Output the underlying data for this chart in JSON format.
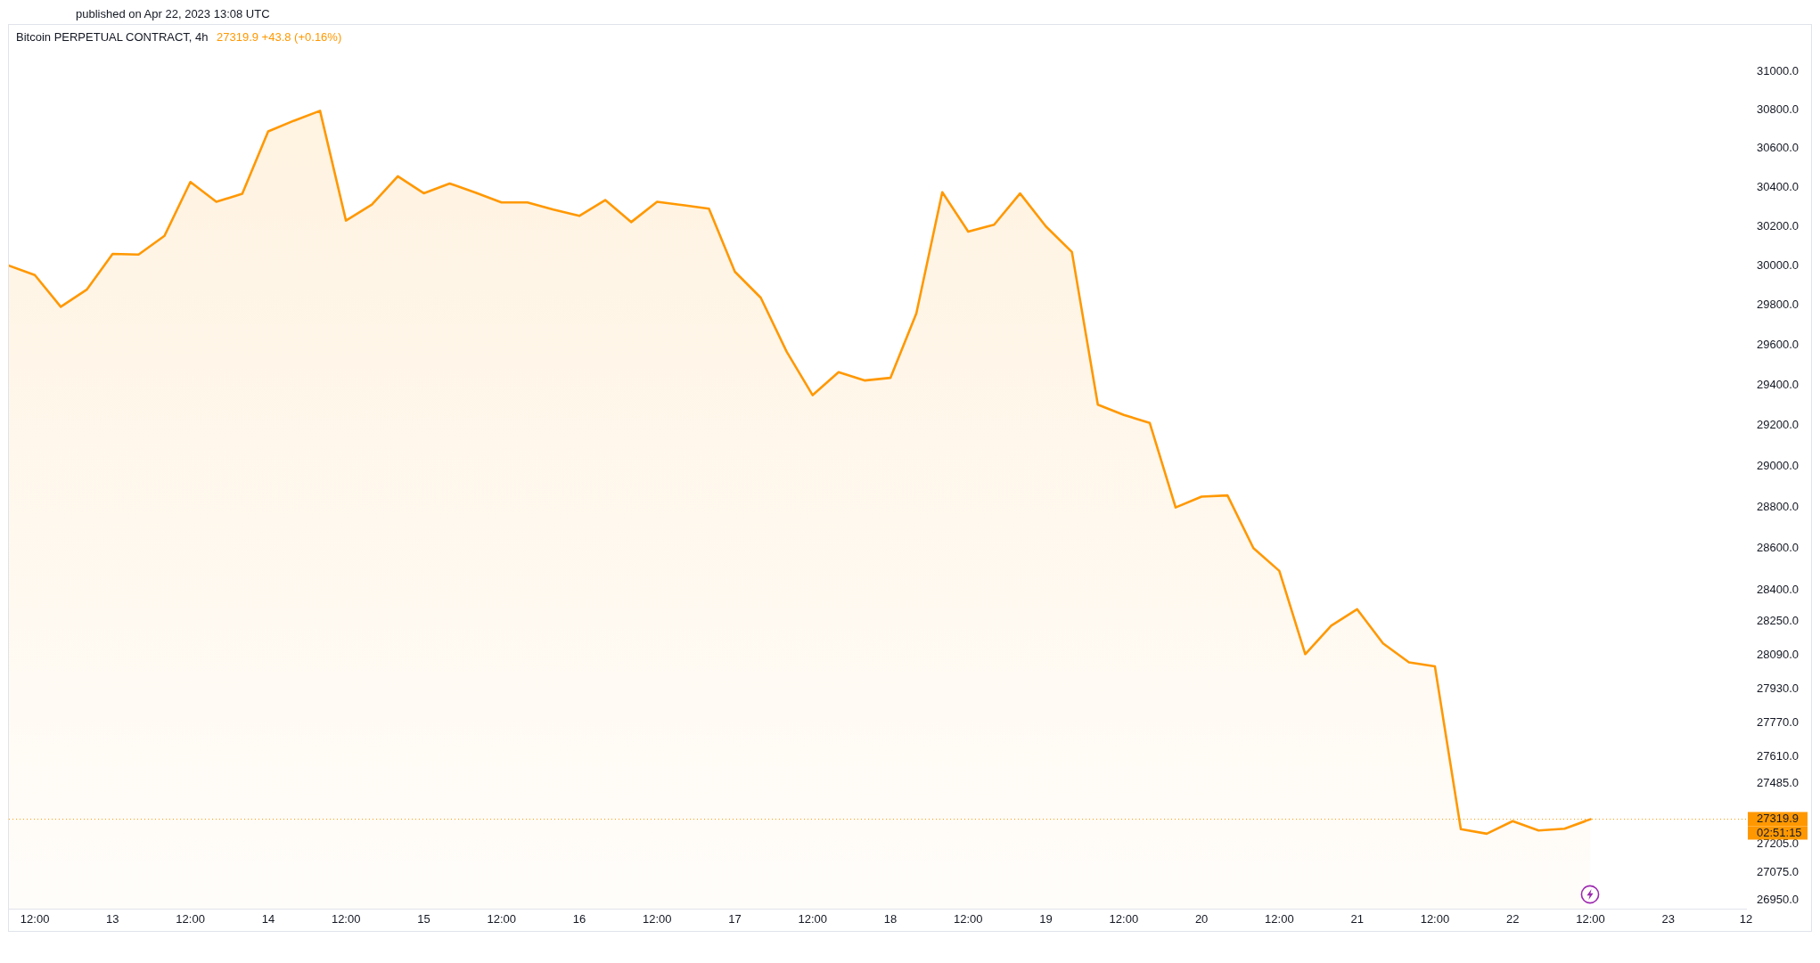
{
  "chart_data": {
    "type": "area",
    "title": "Bitcoin PERPETUAL CONTRACT, 4h",
    "subtitle": "27319.9 +43.8 (+0.16%)",
    "annotations": [
      "published on Apr 22, 2023 13:08 UTC",
      "02:51:15"
    ],
    "x": [
      "2023-04-12T08:00",
      "2023-04-12T12:00",
      "2023-04-12T16:00",
      "2023-04-12T20:00",
      "2023-04-13T00:00",
      "2023-04-13T04:00",
      "2023-04-13T08:00",
      "2023-04-13T12:00",
      "2023-04-13T16:00",
      "2023-04-13T20:00",
      "2023-04-14T00:00",
      "2023-04-14T04:00",
      "2023-04-14T08:00",
      "2023-04-14T12:00",
      "2023-04-14T16:00",
      "2023-04-14T20:00",
      "2023-04-15T00:00",
      "2023-04-15T04:00",
      "2023-04-15T08:00",
      "2023-04-15T12:00",
      "2023-04-15T16:00",
      "2023-04-15T20:00",
      "2023-04-16T00:00",
      "2023-04-16T04:00",
      "2023-04-16T08:00",
      "2023-04-16T12:00",
      "2023-04-16T16:00",
      "2023-04-16T20:00",
      "2023-04-17T00:00",
      "2023-04-17T04:00",
      "2023-04-17T08:00",
      "2023-04-17T12:00",
      "2023-04-17T16:00",
      "2023-04-17T20:00",
      "2023-04-18T00:00",
      "2023-04-18T04:00",
      "2023-04-18T08:00",
      "2023-04-18T12:00",
      "2023-04-18T16:00",
      "2023-04-18T20:00",
      "2023-04-19T00:00",
      "2023-04-19T04:00",
      "2023-04-19T08:00",
      "2023-04-19T12:00",
      "2023-04-19T16:00",
      "2023-04-19T20:00",
      "2023-04-20T00:00",
      "2023-04-20T04:00",
      "2023-04-20T08:00",
      "2023-04-20T12:00",
      "2023-04-20T16:00",
      "2023-04-20T20:00",
      "2023-04-21T00:00",
      "2023-04-21T04:00",
      "2023-04-21T08:00",
      "2023-04-21T12:00",
      "2023-04-21T16:00",
      "2023-04-21T20:00",
      "2023-04-22T00:00",
      "2023-04-22T04:00",
      "2023-04-22T08:00",
      "2023-04-22T12:00"
    ],
    "values": [
      30000,
      29952,
      29792,
      29878,
      30059,
      30056,
      30151,
      30427,
      30325,
      30366,
      30688,
      30744,
      30795,
      30229,
      30311,
      30456,
      30369,
      30419,
      30372,
      30322,
      30322,
      30285,
      30253,
      30334,
      30221,
      30325,
      30308,
      30290,
      29969,
      29837,
      29566,
      29350,
      29464,
      29423,
      29436,
      29759,
      30374,
      30173,
      30208,
      30368,
      30199,
      30069,
      29303,
      29252,
      29213,
      28798,
      28851,
      28857,
      28601,
      28491,
      28093,
      28228,
      28307,
      28144,
      28054,
      28035,
      27274,
      27253,
      27311,
      27268,
      27276,
      27319.9
    ],
    "color": "#ff9800",
    "xlim": [
      "2023-04-12T08:00",
      "2023-04-23T12:00"
    ],
    "xticks": [
      {
        "value": "2023-04-12T12:00",
        "label": "12:00"
      },
      {
        "value": "2023-04-13T00:00",
        "label": "13"
      },
      {
        "value": "2023-04-13T12:00",
        "label": "12:00"
      },
      {
        "value": "2023-04-14T00:00",
        "label": "14"
      },
      {
        "value": "2023-04-14T12:00",
        "label": "12:00"
      },
      {
        "value": "2023-04-15T00:00",
        "label": "15"
      },
      {
        "value": "2023-04-15T12:00",
        "label": "12:00"
      },
      {
        "value": "2023-04-16T00:00",
        "label": "16"
      },
      {
        "value": "2023-04-16T12:00",
        "label": "12:00"
      },
      {
        "value": "2023-04-17T00:00",
        "label": "17"
      },
      {
        "value": "2023-04-17T12:00",
        "label": "12:00"
      },
      {
        "value": "2023-04-18T00:00",
        "label": "18"
      },
      {
        "value": "2023-04-18T12:00",
        "label": "12:00"
      },
      {
        "value": "2023-04-19T00:00",
        "label": "19"
      },
      {
        "value": "2023-04-19T12:00",
        "label": "12:00"
      },
      {
        "value": "2023-04-20T00:00",
        "label": "20"
      },
      {
        "value": "2023-04-20T12:00",
        "label": "12:00"
      },
      {
        "value": "2023-04-21T00:00",
        "label": "21"
      },
      {
        "value": "2023-04-21T12:00",
        "label": "12:00"
      },
      {
        "value": "2023-04-22T00:00",
        "label": "22"
      },
      {
        "value": "2023-04-22T12:00",
        "label": "12:00"
      },
      {
        "value": "2023-04-23T00:00",
        "label": "23"
      },
      {
        "value": "2023-04-23T12:00",
        "label": "12"
      }
    ],
    "ylim": [
      26910,
      31250
    ],
    "yticks": [
      {
        "value": 31000,
        "label": "31000.0"
      },
      {
        "value": 30800,
        "label": "30800.0"
      },
      {
        "value": 30600,
        "label": "30600.0"
      },
      {
        "value": 30400,
        "label": "30400.0"
      },
      {
        "value": 30200,
        "label": "30200.0"
      },
      {
        "value": 30000,
        "label": "30000.0"
      },
      {
        "value": 29800,
        "label": "29800.0"
      },
      {
        "value": 29600,
        "label": "29600.0"
      },
      {
        "value": 29400,
        "label": "29400.0"
      },
      {
        "value": 29200,
        "label": "29200.0"
      },
      {
        "value": 29000,
        "label": "29000.0"
      },
      {
        "value": 28800,
        "label": "28800.0"
      },
      {
        "value": 28600,
        "label": "28600.0"
      },
      {
        "value": 28400,
        "label": "28400.0"
      },
      {
        "value": 28250,
        "label": "28250.0"
      },
      {
        "value": 28090,
        "label": "28090.0"
      },
      {
        "value": 27930,
        "label": "27930.0"
      },
      {
        "value": 27770,
        "label": "27770.0"
      },
      {
        "value": 27610,
        "label": "27610.0"
      },
      {
        "value": 27485,
        "label": "27485.0"
      },
      {
        "value": 27205,
        "label": "27205.0"
      },
      {
        "value": 27075,
        "label": "27075.0"
      },
      {
        "value": 26950,
        "label": "26950.0"
      }
    ],
    "log": "y",
    "ref_lines": [
      {
        "axis": "y",
        "value": 27319.9,
        "label": "27319.9",
        "color": "#ff9800",
        "line_style": "dotted"
      }
    ]
  }
}
